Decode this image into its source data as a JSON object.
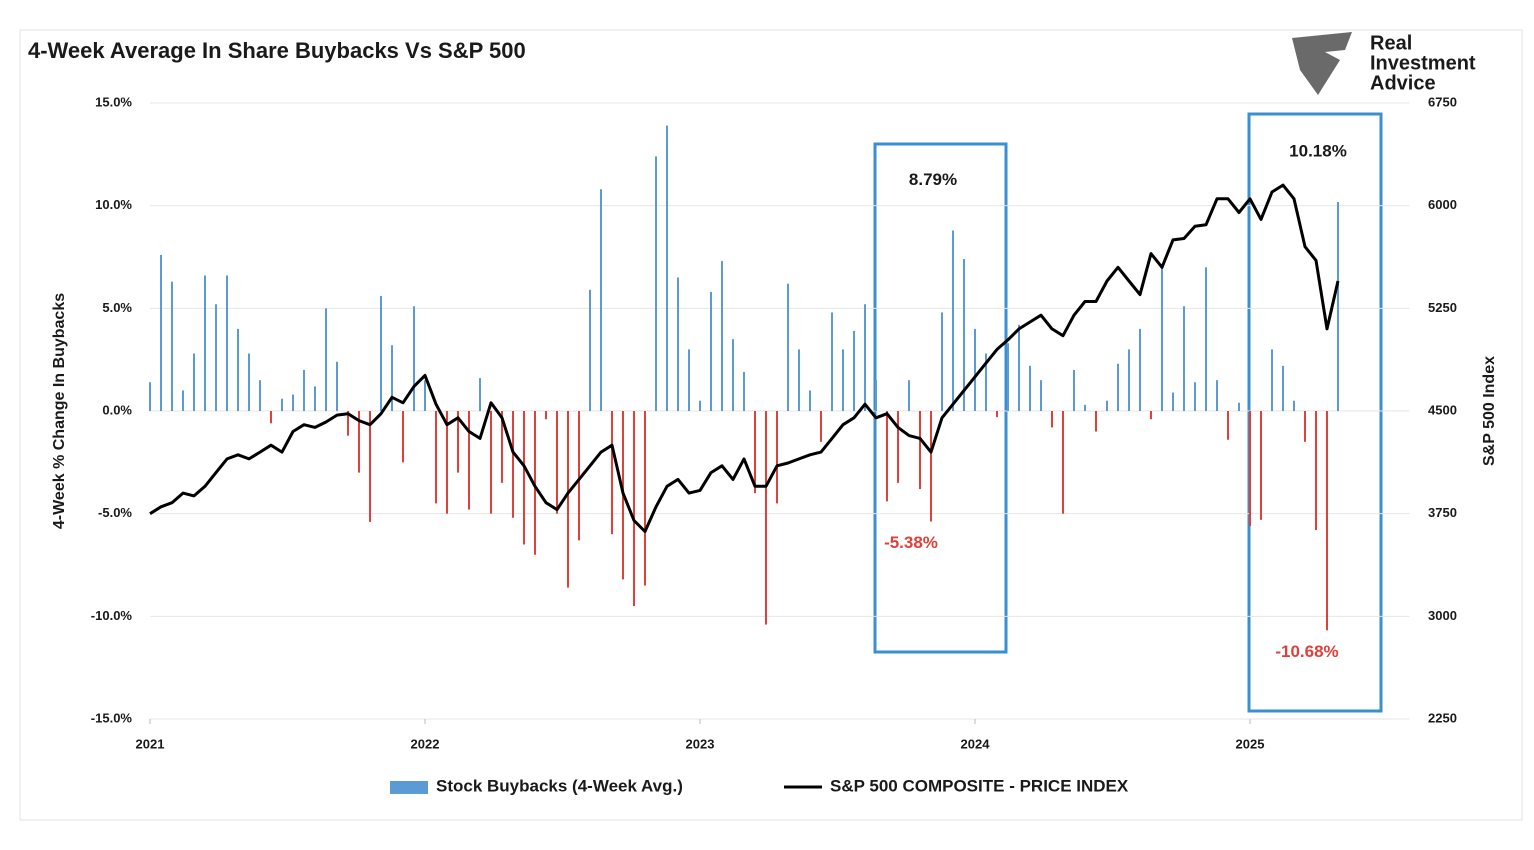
{
  "brand": [
    "Real",
    "Investment",
    "Advice"
  ],
  "chart_data": {
    "type": "bar-line",
    "title": "4-Week Average In Share Buybacks Vs S&P 500",
    "y_label": "4-Week % Change In Buybacks",
    "y2_label": "S&P 500 Index",
    "x": [
      2021.0,
      2021.04,
      2021.08,
      2021.12,
      2021.16,
      2021.2,
      2021.24,
      2021.28,
      2021.32,
      2021.36,
      2021.4,
      2021.44,
      2021.48,
      2021.52,
      2021.56,
      2021.6,
      2021.64,
      2021.68,
      2021.72,
      2021.76,
      2021.8,
      2021.84,
      2021.88,
      2021.92,
      2021.96,
      2022.0,
      2022.04,
      2022.08,
      2022.12,
      2022.16,
      2022.2,
      2022.24,
      2022.28,
      2022.32,
      2022.36,
      2022.4,
      2022.44,
      2022.48,
      2022.52,
      2022.56,
      2022.6,
      2022.64,
      2022.68,
      2022.72,
      2022.76,
      2022.8,
      2022.84,
      2022.88,
      2022.92,
      2022.96,
      2023.0,
      2023.04,
      2023.08,
      2023.12,
      2023.16,
      2023.2,
      2023.24,
      2023.28,
      2023.32,
      2023.36,
      2023.4,
      2023.44,
      2023.48,
      2023.52,
      2023.56,
      2023.6,
      2023.64,
      2023.68,
      2023.72,
      2023.76,
      2023.8,
      2023.84,
      2023.88,
      2023.92,
      2023.96,
      2024.0,
      2024.04,
      2024.08,
      2024.12,
      2024.16,
      2024.2,
      2024.24,
      2024.28,
      2024.32,
      2024.36,
      2024.4,
      2024.44,
      2024.48,
      2024.52,
      2024.56,
      2024.6,
      2024.64,
      2024.68,
      2024.72,
      2024.76,
      2024.8,
      2024.84,
      2024.88,
      2024.92,
      2024.96,
      2025.0,
      2025.04,
      2025.08,
      2025.12,
      2025.16,
      2025.2,
      2025.24,
      2025.28,
      2025.32
    ],
    "xlim": [
      2021,
      2025.58
    ],
    "xticks": [
      2021,
      2022,
      2023,
      2024,
      2025
    ],
    "ylim": [
      -15,
      15
    ],
    "yticks": [
      {
        "value": -15,
        "label": "-15.0%"
      },
      {
        "value": -10,
        "label": "-10.0%"
      },
      {
        "value": -5,
        "label": "-5.0%"
      },
      {
        "value": 0,
        "label": "0.0%"
      },
      {
        "value": 5,
        "label": "5.0%"
      },
      {
        "value": 10,
        "label": "10.0%"
      },
      {
        "value": 15,
        "label": "15.0%"
      }
    ],
    "y2lim": [
      2250,
      6750
    ],
    "y2ticks": [
      2250,
      3000,
      3750,
      4500,
      5250,
      6000,
      6750
    ],
    "grid": true,
    "series": [
      {
        "name": "Stock Buybacks (4-Week Avg.)",
        "type": "bar",
        "color": "#5b9bd5",
        "negative_color": "#e0403a",
        "values": [
          1.4,
          7.6,
          6.3,
          1.0,
          2.8,
          6.6,
          5.2,
          6.6,
          4.0,
          2.8,
          1.5,
          -0.6,
          0.6,
          0.8,
          2.0,
          1.2,
          5.0,
          2.4,
          -1.2,
          -3.0,
          -5.4,
          5.6,
          3.2,
          -2.5,
          5.1,
          1.5,
          -4.5,
          -5.0,
          -3.0,
          -4.8,
          1.6,
          -5.0,
          -3.5,
          -5.2,
          -6.5,
          -7.0,
          -0.4,
          -5.0,
          -8.6,
          -6.3,
          5.9,
          10.8,
          -6.0,
          -8.2,
          -9.5,
          -8.5,
          12.4,
          13.9,
          6.5,
          3.0,
          0.5,
          5.8,
          7.3,
          3.5,
          1.9,
          -4.0,
          -10.4,
          -4.5,
          6.2,
          3.0,
          1.0,
          -1.5,
          4.8,
          3.0,
          3.9,
          5.2,
          1.5,
          -4.4,
          -3.5,
          1.5,
          -3.8,
          -5.38,
          4.8,
          8.79,
          7.4,
          4.0,
          2.8,
          -0.3,
          3.3,
          4.2,
          2.2,
          1.5,
          -0.8,
          -5.0,
          2.0,
          0.3,
          -1.0,
          0.5,
          2.3,
          3.0,
          4.0,
          -0.4,
          7.0,
          0.9,
          5.1,
          1.4,
          7.0,
          1.5,
          -1.4,
          0.4,
          -5.6,
          -5.3,
          3.0,
          2.2,
          0.5,
          -1.5,
          -5.8,
          -10.68,
          10.18
        ],
        "value_labels": [
          null,
          null,
          null,
          null,
          null,
          null,
          null,
          null,
          null,
          null,
          null,
          null,
          null,
          null,
          null,
          null,
          null,
          null,
          null,
          null,
          null,
          null,
          null,
          null,
          null,
          null,
          null,
          null,
          null,
          null,
          null,
          null,
          null,
          null,
          null,
          null,
          null,
          null,
          null,
          null,
          null,
          null,
          null,
          null,
          null,
          null,
          null,
          null,
          null,
          null,
          null,
          null,
          null,
          null,
          null,
          null,
          null,
          null,
          null,
          null,
          null,
          null,
          null,
          null,
          null,
          null,
          null,
          null,
          null,
          null,
          null,
          "-5.38%",
          null,
          "8.79%",
          null,
          null,
          null,
          null,
          null,
          null,
          null,
          null,
          null,
          null,
          null,
          null,
          null,
          null,
          null,
          null,
          null,
          null,
          null,
          null,
          null,
          null,
          null,
          null,
          null,
          null,
          null,
          null,
          null,
          null,
          null,
          null,
          null,
          "-10.68%",
          "10.18%"
        ]
      },
      {
        "name": "S&P 500 COMPOSITE - PRICE INDEX",
        "type": "line",
        "axis": "y2",
        "color": "#000000",
        "values": [
          3750,
          3800,
          3830,
          3900,
          3880,
          3950,
          4050,
          4150,
          4180,
          4150,
          4200,
          4250,
          4200,
          4350,
          4400,
          4380,
          4420,
          4470,
          4480,
          4430,
          4400,
          4480,
          4600,
          4560,
          4680,
          4760,
          4550,
          4400,
          4450,
          4350,
          4300,
          4560,
          4450,
          4200,
          4100,
          3950,
          3830,
          3780,
          3900,
          4000,
          4100,
          4200,
          4250,
          3900,
          3700,
          3620,
          3800,
          3950,
          4000,
          3900,
          3920,
          4050,
          4100,
          4000,
          4150,
          3950,
          3950,
          4100,
          4120,
          4150,
          4180,
          4200,
          4300,
          4400,
          4450,
          4550,
          4450,
          4480,
          4380,
          4320,
          4300,
          4200,
          4450,
          4550,
          4650,
          4750,
          4850,
          4950,
          5020,
          5100,
          5150,
          5200,
          5100,
          5050,
          5200,
          5300,
          5300,
          5450,
          5550,
          5450,
          5350,
          5650,
          5550,
          5750,
          5760,
          5850,
          5860,
          6050,
          6050,
          5950,
          6050,
          5900,
          6100,
          6150,
          6050,
          5700,
          5600,
          5100,
          5450
        ]
      }
    ]
  }
}
